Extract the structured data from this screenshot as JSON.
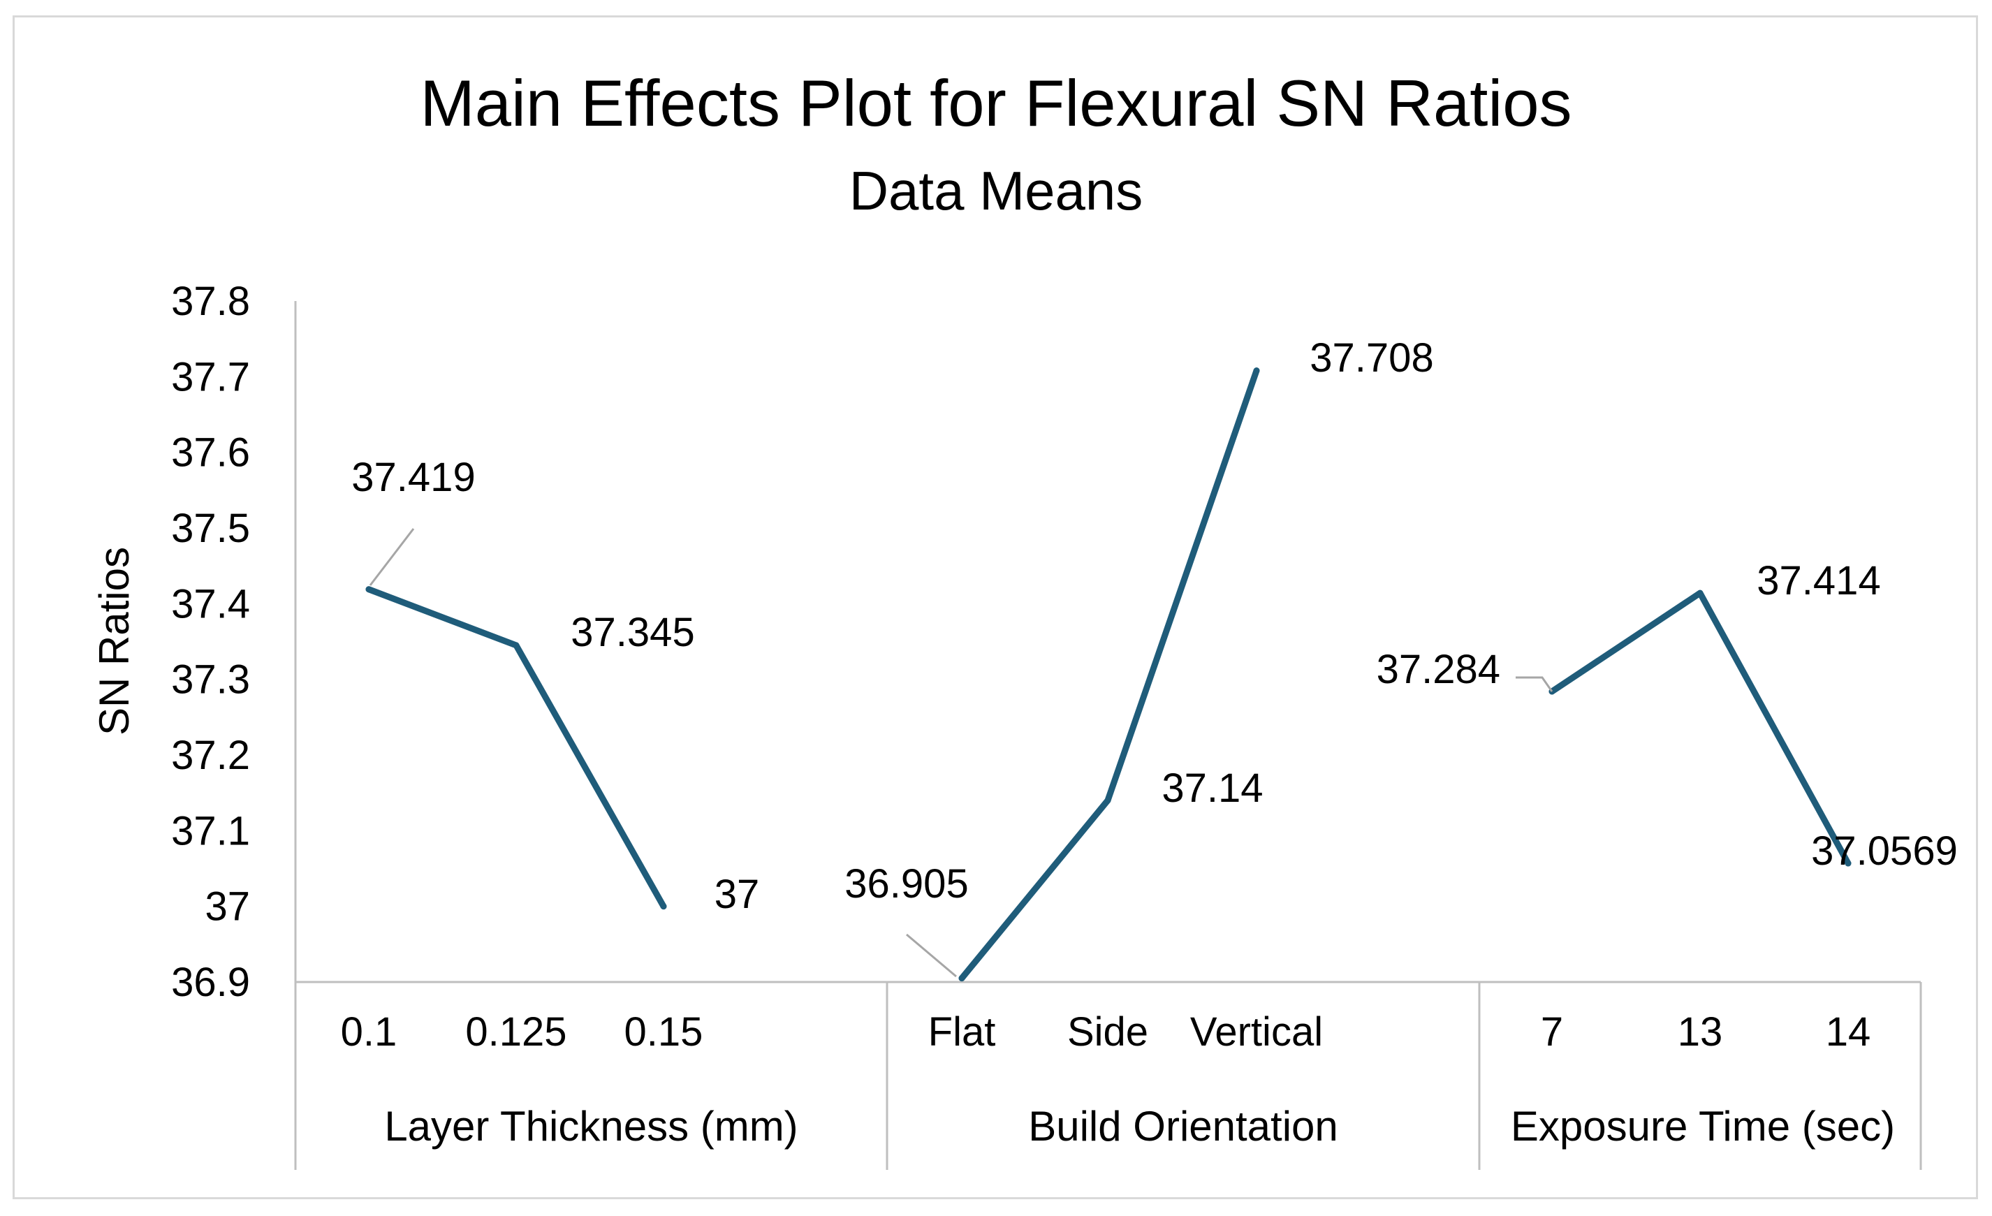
{
  "chart_data": {
    "type": "line",
    "title": "Main Effects Plot for Flexural SN Ratios",
    "subtitle": "Data Means",
    "ylabel": "SN Ratios",
    "ylim": [
      36.9,
      37.8
    ],
    "yticks": [
      "37.8",
      "37.7",
      "37.6",
      "37.5",
      "37.4",
      "37.3",
      "37.2",
      "37.1",
      "37",
      "36.9"
    ],
    "ytick_values": [
      37.8,
      37.7,
      37.6,
      37.5,
      37.4,
      37.3,
      37.2,
      37.1,
      37.0,
      36.9
    ],
    "grid": false,
    "legend": "none",
    "line_color": "#1f5c7a",
    "groups": [
      {
        "name": "Layer Thickness (mm)",
        "categories": [
          "0.1",
          "0.125",
          "0.15"
        ],
        "values": [
          37.419,
          37.345,
          37.0
        ],
        "labels": [
          "37.419",
          "37.345",
          "37"
        ]
      },
      {
        "name": "Build Orientation",
        "categories": [
          "Flat",
          "Side",
          "Vertical"
        ],
        "values": [
          36.905,
          37.14,
          37.708
        ],
        "labels": [
          "36.905",
          "37.14",
          "37.708"
        ]
      },
      {
        "name": "Exposure Time (sec)",
        "categories": [
          "7",
          "13",
          "14"
        ],
        "values": [
          37.284,
          37.414,
          37.0569
        ],
        "labels": [
          "37.284",
          "37.414",
          "37.0569"
        ]
      }
    ]
  }
}
